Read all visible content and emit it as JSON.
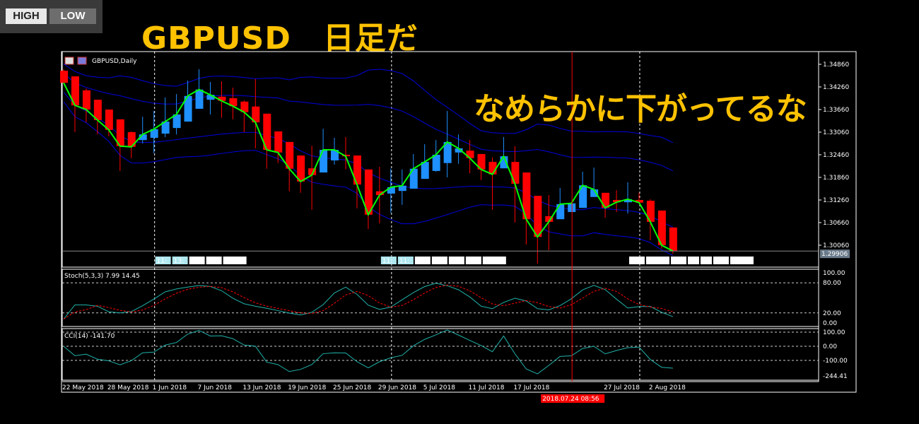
{
  "logo": {
    "high": "HIGH",
    "low": "LOW"
  },
  "overlay": {
    "title": "GBPUSD　日足だ",
    "comment": "なめらかに下がってるな",
    "color": "#ffc200"
  },
  "chart_data": {
    "type": "candlestick",
    "title": "GBPUSD,Daily",
    "colors": {
      "bull": "#1e90ff",
      "bear": "#ff0000",
      "bands": "#0000e0",
      "close_line": "#00ff00",
      "stoch_main": "#20b2aa",
      "stoch_signal": "#ff0000",
      "cci": "#20b2aa",
      "crosshair": "#ff0000"
    },
    "price_ticks": [
      "1.34860",
      "1.34260",
      "1.33660",
      "1.33060",
      "1.32460",
      "1.31860",
      "1.31260",
      "1.30660",
      "1.30060"
    ],
    "ylim": [
      1.2955,
      1.3515
    ],
    "bid": "1.29906",
    "candles_ohlc": [
      [
        1.3469,
        1.3473,
        1.3434,
        1.3437
      ],
      [
        1.3454,
        1.3454,
        1.3306,
        1.3377
      ],
      [
        1.3417,
        1.3422,
        1.3332,
        1.3366
      ],
      [
        1.3392,
        1.3392,
        1.33,
        1.3338
      ],
      [
        1.3366,
        1.3366,
        1.3295,
        1.3312
      ],
      [
        1.334,
        1.334,
        1.3203,
        1.3269
      ],
      [
        1.3306,
        1.3308,
        1.3237,
        1.3267
      ],
      [
        1.3285,
        1.3347,
        1.3276,
        1.33
      ],
      [
        1.3291,
        1.3362,
        1.325,
        1.3314
      ],
      [
        1.3302,
        1.3398,
        1.3293,
        1.3334
      ],
      [
        1.3317,
        1.3407,
        1.33,
        1.3353
      ],
      [
        1.3334,
        1.3443,
        1.3334,
        1.3402
      ],
      [
        1.3368,
        1.3473,
        1.3368,
        1.3419
      ],
      [
        1.3392,
        1.3439,
        1.3353,
        1.3405
      ],
      [
        1.34,
        1.3441,
        1.3344,
        1.3389
      ],
      [
        1.3396,
        1.3424,
        1.334,
        1.3375
      ],
      [
        1.3387,
        1.339,
        1.3306,
        1.3359
      ],
      [
        1.3374,
        1.3447,
        1.3263,
        1.3332
      ],
      [
        1.3355,
        1.3355,
        1.3209,
        1.3259
      ],
      [
        1.3308,
        1.3308,
        1.3224,
        1.3252
      ],
      [
        1.328,
        1.328,
        1.3149,
        1.3209
      ],
      [
        1.3244,
        1.3244,
        1.3145,
        1.3175
      ],
      [
        1.321,
        1.327,
        1.31,
        1.3192
      ],
      [
        1.3199,
        1.3315,
        1.3199,
        1.3259
      ],
      [
        1.3231,
        1.3291,
        1.322,
        1.3259
      ],
      [
        1.3246,
        1.3293,
        1.3207,
        1.3242
      ],
      [
        1.3244,
        1.3244,
        1.3104,
        1.3167
      ],
      [
        1.3207,
        1.3207,
        1.3049,
        1.3087
      ],
      [
        1.3149,
        1.3214,
        1.3064,
        1.3139
      ],
      [
        1.3143,
        1.3209,
        1.3092,
        1.316
      ],
      [
        1.315,
        1.3207,
        1.3113,
        1.3164
      ],
      [
        1.3156,
        1.3248,
        1.3156,
        1.3209
      ],
      [
        1.3182,
        1.3274,
        1.3182,
        1.3227
      ],
      [
        1.3203,
        1.3285,
        1.3201,
        1.3246
      ],
      [
        1.3224,
        1.3362,
        1.3186,
        1.328
      ],
      [
        1.3252,
        1.33,
        1.3222,
        1.3263
      ],
      [
        1.3257,
        1.3285,
        1.3197,
        1.3237
      ],
      [
        1.3248,
        1.3248,
        1.3179,
        1.3207
      ],
      [
        1.3227,
        1.3239,
        1.31,
        1.3194
      ],
      [
        1.321,
        1.3293,
        1.321,
        1.3242
      ],
      [
        1.3227,
        1.3269,
        1.3066,
        1.3169
      ],
      [
        1.3199,
        1.3199,
        1.3008,
        1.3075
      ],
      [
        1.3137,
        1.3137,
        1.2957,
        1.3028
      ],
      [
        1.3083,
        1.3139,
        1.2993,
        1.3068
      ],
      [
        1.3075,
        1.3158,
        1.3075,
        1.3115
      ],
      [
        1.3094,
        1.3117,
        1.3094,
        1.3117
      ],
      [
        1.3105,
        1.3201,
        1.3105,
        1.3165
      ],
      [
        1.3134,
        1.3212,
        1.3134,
        1.3154
      ],
      [
        1.3145,
        1.3145,
        1.3079,
        1.3105
      ],
      [
        1.3126,
        1.3152,
        1.3094,
        1.312
      ],
      [
        1.312,
        1.3173,
        1.309,
        1.3128
      ],
      [
        1.3126,
        1.3145,
        1.3119,
        1.3119
      ],
      [
        1.3124,
        1.3128,
        1.3019,
        1.3068
      ],
      [
        1.3098,
        1.3098,
        1.2997,
        1.3006
      ],
      [
        1.3053,
        1.3053,
        1.2983,
        1.29906
      ]
    ],
    "x_ticks": [
      {
        "label": "22 May 2018",
        "bar": 0
      },
      {
        "label": "28 May 2018",
        "bar": 4
      },
      {
        "label": "1 Jun 2018",
        "bar": 8
      },
      {
        "label": "7 Jun 2018",
        "bar": 12
      },
      {
        "label": "13 Jun 2018",
        "bar": 16
      },
      {
        "label": "19 Jun 2018",
        "bar": 20
      },
      {
        "label": "25 Jun 2018",
        "bar": 24
      },
      {
        "label": "29 Jun 2018",
        "bar": 28
      },
      {
        "label": "5 Jul 2018",
        "bar": 32
      },
      {
        "label": "11 Jul 2018",
        "bar": 36
      },
      {
        "label": "17 Jul 2018",
        "bar": 40
      },
      {
        "label": "27 Jul 2018",
        "bar": 48
      },
      {
        "label": "2 Aug 2018",
        "bar": 52
      }
    ],
    "separators_bars": [
      8,
      29,
      51
    ],
    "crosshair": {
      "bar": 45,
      "label": "2018.07.24 08:56"
    },
    "session_labels": [
      {
        "bar": 9,
        "items": [
          "11:",
          "13:",
          "03:",
          "10:",
          "22:30"
        ]
      },
      {
        "bar": 29,
        "items": [
          "11:",
          "11:",
          "11:",
          "13:",
          "02:",
          "11:",
          "02:50"
        ]
      },
      {
        "bar": 51,
        "items": [
          "11:",
          "14:30",
          "03:",
          "10",
          "09",
          "03:",
          "02:50"
        ]
      }
    ],
    "stoch": {
      "label": "Stoch(5,3,3) 7.99 14.45",
      "ticks": [
        "100.00",
        "80.00",
        "20.00",
        "0.00"
      ],
      "levels": [
        80,
        20
      ]
    },
    "cci": {
      "label": "CCI(14) -141.70",
      "ticks": [
        "100.00",
        "0.00",
        "-100.00",
        "-244.41"
      ],
      "levels": [
        100,
        0,
        -100
      ]
    }
  }
}
